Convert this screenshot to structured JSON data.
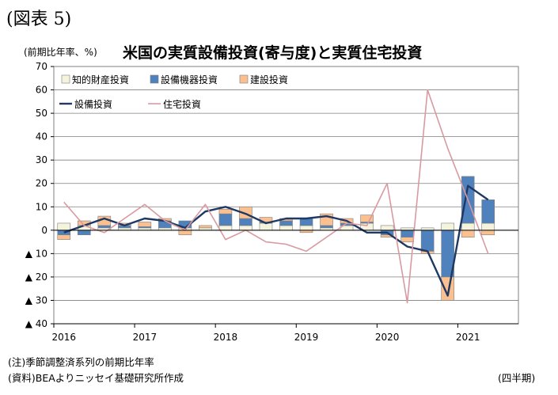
{
  "figure_label": "(図表 5)",
  "unit_label": "(前期比年率、%)",
  "footnote": "(注)季節調整済系列の前期比年率",
  "source": "(資料)BEAよりニッセイ基礎研究所作成",
  "x_unit": "(四半期)",
  "chart_data": {
    "type": "bar",
    "title": "米国の実質設備投資(寄与度)と実質住宅投資",
    "xlabel": "",
    "ylabel": "",
    "ylim": [
      -40,
      70
    ],
    "yticks": [
      70,
      60,
      50,
      40,
      30,
      20,
      10,
      0,
      -10,
      -20,
      -30,
      -40
    ],
    "ytick_labels": [
      "70",
      "60",
      "50",
      "40",
      "30",
      "20",
      "10",
      "0",
      "▲ 10",
      "▲ 20",
      "▲ 30",
      "▲ 40"
    ],
    "x_tick_labels": [
      "2016",
      "2017",
      "2018",
      "2019",
      "2020",
      "2021"
    ],
    "quarters": [
      "2016Q1",
      "2016Q2",
      "2016Q3",
      "2016Q4",
      "2017Q1",
      "2017Q2",
      "2017Q3",
      "2017Q4",
      "2018Q1",
      "2018Q2",
      "2018Q3",
      "2018Q4",
      "2019Q1",
      "2019Q2",
      "2019Q3",
      "2019Q4",
      "2020Q1",
      "2020Q2",
      "2020Q3",
      "2020Q4",
      "2021Q1",
      "2021Q2"
    ],
    "grid": "horizontal",
    "legend_position": "top-left",
    "stacked_series": [
      {
        "name": "知的財産投資",
        "color": "#f4f4dd",
        "values": [
          3,
          2,
          1,
          1,
          1,
          1,
          1,
          1,
          2,
          2,
          3,
          2,
          2,
          1,
          2,
          3,
          2,
          1,
          1,
          3,
          3,
          3
        ]
      },
      {
        "name": "設備機器投資",
        "color": "#4f81bd",
        "values": [
          -2,
          -2,
          1,
          1,
          0.5,
          3,
          3,
          0,
          5,
          3,
          0.5,
          2,
          3,
          1,
          1,
          0.5,
          -2,
          -3,
          -9,
          -20,
          20,
          10
        ]
      },
      {
        "name": "建設投資",
        "color": "#fac090",
        "values": [
          -2,
          2,
          4,
          1,
          2,
          1,
          -2,
          1,
          2,
          5,
          2,
          1,
          -1,
          5,
          2,
          3,
          -1,
          -2,
          -1,
          -10,
          -3,
          -2
        ]
      }
    ],
    "line_series": [
      {
        "name": "設備投資",
        "color": "#1f3864",
        "values": [
          -1,
          2,
          5,
          2,
          5,
          4,
          1,
          8,
          10,
          7,
          3,
          5,
          5,
          6,
          4,
          -1,
          -1,
          -7,
          -9,
          -28,
          19,
          13
        ]
      },
      {
        "name": "住宅投資",
        "color": "#d89aa0",
        "values": [
          12,
          2,
          -1,
          5,
          11,
          4,
          0,
          11,
          -4,
          0,
          -5,
          -6,
          -9,
          -3,
          3,
          2,
          20,
          -31,
          60,
          35,
          13,
          -10
        ]
      }
    ]
  }
}
